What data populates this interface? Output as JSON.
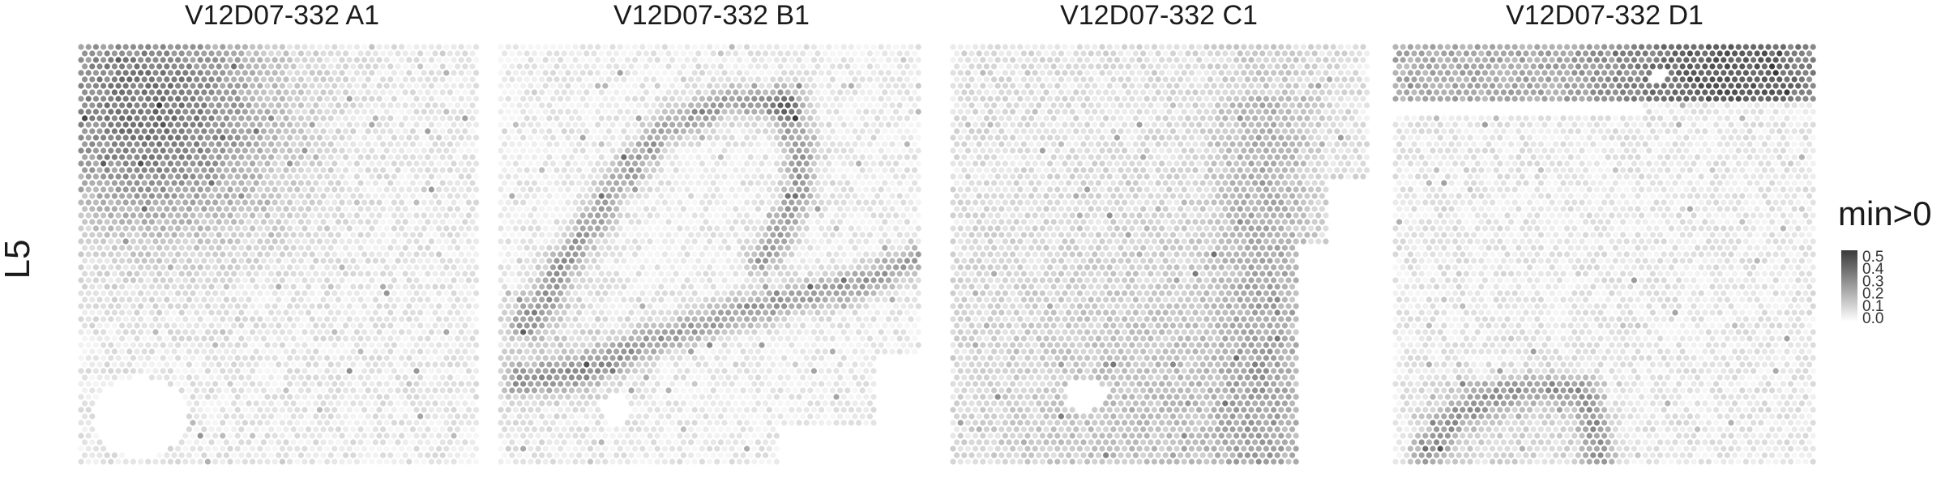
{
  "row_label": "L5",
  "panels": [
    {
      "title": "V12D07-332  A1"
    },
    {
      "title": "V12D07-332  B1"
    },
    {
      "title": "V12D07-332  C1"
    },
    {
      "title": "V12D07-332  D1"
    }
  ],
  "legend": {
    "title": "min>0",
    "ticks": [
      "0.5",
      "0.4",
      "0.3",
      "0.2",
      "0.1",
      "0.0"
    ],
    "color_low": "#ffffff",
    "color_high": "#3a3a3a"
  },
  "chart_data": {
    "type": "heatmap",
    "subtype": "spatial-spot-map",
    "facet_row": "L5",
    "facets": [
      "V12D07-332  A1",
      "V12D07-332  B1",
      "V12D07-332  C1",
      "V12D07-332  D1"
    ],
    "value_range": [
      0.0,
      0.5
    ],
    "colorbar_title": "min>0",
    "colorbar_ticks": [
      0.0,
      0.1,
      0.2,
      0.3,
      0.4,
      0.5
    ],
    "colorscale": [
      "#ffffff",
      "#3a3a3a"
    ],
    "axes_visible": false,
    "grid": false,
    "legend_position": "right"
  }
}
